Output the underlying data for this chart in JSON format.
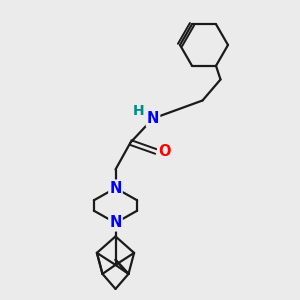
{
  "background_color": "#ebebeb",
  "bond_color": "#1a1a1a",
  "nitrogen_color": "#0000ff",
  "oxygen_color": "#ff0000",
  "h_color": "#008b8b",
  "bond_width": 1.6,
  "font_size_atom": 10.5,
  "fig_w": 3.0,
  "fig_h": 3.0,
  "dpi": 100,
  "xlim": [
    0,
    10
  ],
  "ylim": [
    0,
    10
  ]
}
